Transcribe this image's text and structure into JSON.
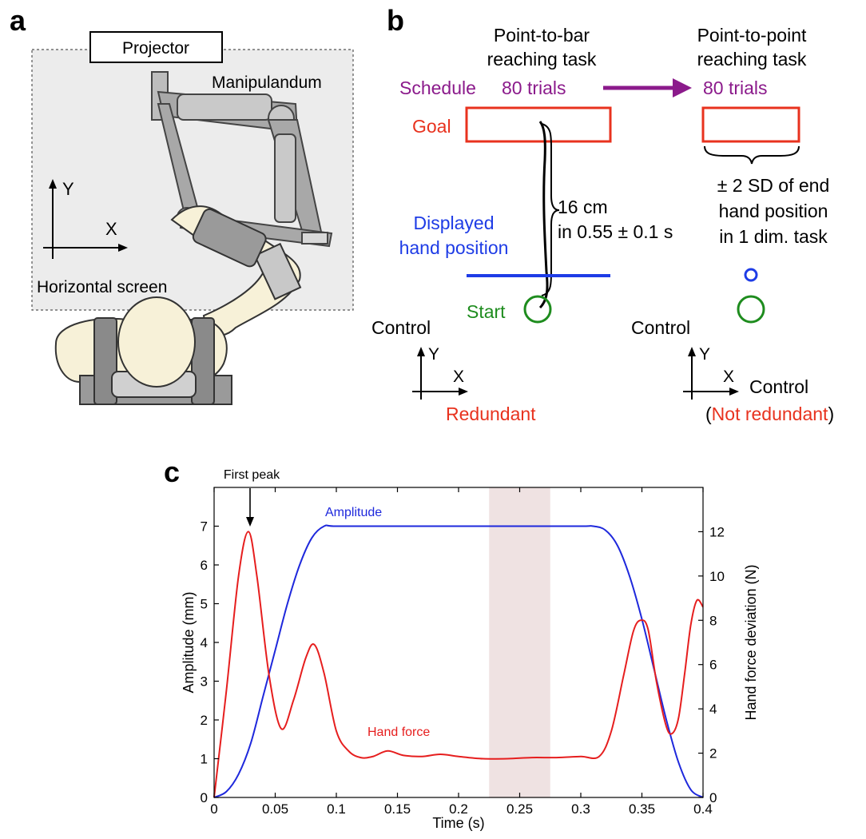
{
  "panel_a": {
    "label": "a",
    "projector": "Projector",
    "manipulandum": "Manipulandum",
    "axis_y": "Y",
    "axis_x": "X",
    "screen": "Horizontal screen"
  },
  "panel_b": {
    "label": "b",
    "task1_line1": "Point-to-bar",
    "task1_line2": "reaching task",
    "task2_line1": "Point-to-point",
    "task2_line2": "reaching task",
    "schedule": "Schedule",
    "trials1": "80 trials",
    "trials2": "80 trials",
    "goal": "Goal",
    "distance_line1": "16 cm",
    "distance_line2": "in 0.55 ± 0.1 s",
    "displayed_line1": "Displayed",
    "displayed_line2": "hand position",
    "start": "Start",
    "sd_line1": "± 2 SD of end",
    "sd_line2": "hand position",
    "sd_line3": "in 1 dim. task",
    "left_control": "Control",
    "left_axis_y": "Y",
    "left_axis_x": "X",
    "left_redundant": "Redundant",
    "right_control_top": "Control",
    "right_axis_y": "Y",
    "right_axis_x": "X",
    "right_control_side": "Control",
    "not_redundant_open": "(",
    "not_redundant": "Not redundant",
    "not_redundant_close": ")",
    "colors": {
      "schedule": "#8B1A8B",
      "goal": "#E8321E",
      "displayed": "#1E3CE6",
      "start": "#1E8C1E"
    }
  },
  "panel_c": {
    "label": "c",
    "annotation_first_peak": "First peak",
    "label_amplitude": "Amplitude",
    "label_hand_force": "Hand force",
    "chart_data": {
      "type": "line",
      "xlabel": "Time (s)",
      "ylabel_left": "Amplitude (mm)",
      "ylabel_right": "Hand force deviation (N)",
      "xlim": [
        0,
        0.4
      ],
      "ylim_left": [
        0,
        8
      ],
      "ylim_right": [
        0,
        14
      ],
      "x_ticks": [
        "0",
        "0.05",
        "0.1",
        "0.15",
        "0.2",
        "0.25",
        "0.3",
        "0.35",
        "0.4"
      ],
      "y_left_ticks": [
        "0",
        "1",
        "2",
        "3",
        "4",
        "5",
        "6",
        "7"
      ],
      "y_right_ticks": [
        "0",
        "2",
        "4",
        "6",
        "8",
        "10",
        "12"
      ],
      "shaded_region": [
        0.225,
        0.275
      ],
      "series": [
        {
          "name": "Amplitude",
          "axis": "left",
          "color": "#1E28DC",
          "x": [
            0,
            0.01,
            0.02,
            0.03,
            0.04,
            0.05,
            0.06,
            0.07,
            0.08,
            0.09,
            0.1,
            0.15,
            0.2,
            0.25,
            0.3,
            0.31,
            0.32,
            0.33,
            0.34,
            0.35,
            0.36,
            0.37,
            0.38,
            0.39,
            0.4
          ],
          "y": [
            0,
            0.15,
            0.6,
            1.4,
            2.6,
            3.8,
            5.0,
            6.0,
            6.7,
            7.0,
            7.0,
            7.0,
            7.0,
            7.0,
            7.0,
            7.0,
            6.9,
            6.5,
            5.7,
            4.6,
            3.3,
            2.0,
            0.9,
            0.2,
            0
          ]
        },
        {
          "name": "Hand force",
          "axis": "right",
          "color": "#E61E1E",
          "x": [
            0,
            0.01,
            0.02,
            0.028,
            0.035,
            0.045,
            0.055,
            0.065,
            0.075,
            0.082,
            0.09,
            0.1,
            0.11,
            0.12,
            0.13,
            0.142,
            0.155,
            0.17,
            0.185,
            0.2,
            0.22,
            0.24,
            0.26,
            0.28,
            0.3,
            0.315,
            0.325,
            0.335,
            0.343,
            0.349,
            0.355,
            0.362,
            0.37,
            0.375,
            0.38,
            0.385,
            0.39,
            0.395,
            0.4
          ],
          "y": [
            0,
            4.8,
            10.0,
            12.0,
            10.0,
            5.5,
            3.1,
            4.4,
            6.3,
            6.9,
            5.6,
            3.0,
            2.1,
            1.8,
            1.85,
            2.1,
            1.9,
            1.85,
            1.95,
            1.85,
            1.75,
            1.75,
            1.8,
            1.8,
            1.85,
            1.85,
            3.0,
            5.5,
            7.5,
            8.0,
            7.6,
            5.2,
            3.2,
            2.9,
            3.6,
            5.6,
            7.8,
            8.9,
            8.6
          ]
        }
      ]
    }
  }
}
